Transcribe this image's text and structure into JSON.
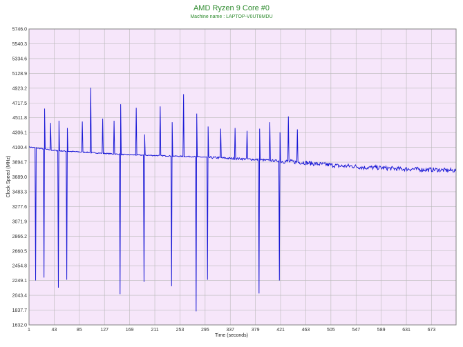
{
  "chart_data": {
    "type": "line",
    "title": "AMD Ryzen 9 Core #0",
    "subtitle": "Machine name : LAPTOP-V0UT8MDU",
    "xlabel": "Time (seconds)",
    "ylabel": "Clock Speed (MHz)",
    "xlim": [
      1,
      714
    ],
    "ylim": [
      1632.0,
      5746.0
    ],
    "x_ticks": [
      "1",
      "43",
      "85",
      "127",
      "169",
      "211",
      "253",
      "295",
      "337",
      "379",
      "421",
      "463",
      "505",
      "547",
      "589",
      "631",
      "673"
    ],
    "y_ticks": [
      "5746.0",
      "5540.3",
      "5334.6",
      "5128.9",
      "4923.2",
      "4717.5",
      "4511.8",
      "4306.1",
      "4100.4",
      "3894.7",
      "3689.0",
      "3483.3",
      "3277.6",
      "3071.9",
      "2866.2",
      "2660.5",
      "2454.8",
      "2249.1",
      "2043.4",
      "1837.7",
      "1632.0"
    ],
    "grid": true,
    "legend": "none",
    "colors": {
      "line": "#1a1ad6",
      "plot_bg": "#f6e6fa",
      "grid": "#b9b9b9",
      "title": "#2e8b2e"
    },
    "series": [
      {
        "values_note_free": true,
        "x": [
          1,
          20,
          40,
          60,
          80,
          100,
          120,
          140,
          160,
          180,
          200,
          220,
          240,
          260,
          280,
          300,
          320,
          340,
          360,
          380,
          400,
          420,
          440,
          460,
          480,
          500,
          520,
          540,
          560,
          580,
          600,
          620,
          640,
          660,
          680,
          700,
          714
        ],
        "values": [
          4105,
          4085,
          4060,
          4048,
          4040,
          4030,
          4020,
          4010,
          4000,
          3995,
          3990,
          3985,
          3980,
          3975,
          3970,
          3960,
          3955,
          3945,
          3940,
          3930,
          3920,
          3910,
          3900,
          3890,
          3870,
          3860,
          3840,
          3840,
          3820,
          3820,
          3810,
          3800,
          3800,
          3790,
          3790,
          3780,
          3780
        ],
        "spikes": [
          {
            "x": 12,
            "value": 2250
          },
          {
            "x": 26,
            "value": 2290
          },
          {
            "x": 27,
            "value": 4640
          },
          {
            "x": 37,
            "value": 4440
          },
          {
            "x": 50,
            "value": 2150
          },
          {
            "x": 51,
            "value": 4470
          },
          {
            "x": 64,
            "value": 2260
          },
          {
            "x": 65,
            "value": 4370
          },
          {
            "x": 90,
            "value": 4460
          },
          {
            "x": 104,
            "value": 4930
          },
          {
            "x": 124,
            "value": 4500
          },
          {
            "x": 143,
            "value": 4470
          },
          {
            "x": 153,
            "value": 2060
          },
          {
            "x": 154,
            "value": 4700
          },
          {
            "x": 180,
            "value": 4650
          },
          {
            "x": 193,
            "value": 2230
          },
          {
            "x": 194,
            "value": 4280
          },
          {
            "x": 220,
            "value": 4670
          },
          {
            "x": 239,
            "value": 2170
          },
          {
            "x": 240,
            "value": 4450
          },
          {
            "x": 259,
            "value": 4840
          },
          {
            "x": 280,
            "value": 1820
          },
          {
            "x": 281,
            "value": 4570
          },
          {
            "x": 299,
            "value": 2260
          },
          {
            "x": 300,
            "value": 4390
          },
          {
            "x": 321,
            "value": 4360
          },
          {
            "x": 345,
            "value": 4370
          },
          {
            "x": 365,
            "value": 4330
          },
          {
            "x": 385,
            "value": 2070
          },
          {
            "x": 386,
            "value": 4360
          },
          {
            "x": 403,
            "value": 4450
          },
          {
            "x": 419,
            "value": 2250
          },
          {
            "x": 420,
            "value": 4310
          },
          {
            "x": 434,
            "value": 4530
          },
          {
            "x": 449,
            "value": 4350
          }
        ]
      }
    ]
  }
}
